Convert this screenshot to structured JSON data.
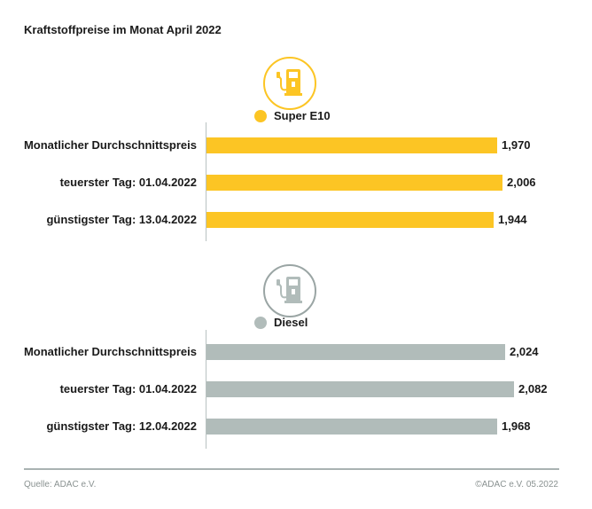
{
  "chart_data": [
    {
      "type": "bar",
      "title": "Kraftstoffpreise im Monat April 2022",
      "legend": "Super E10",
      "color": "#fcc524",
      "icon": "fuel-pump-icon",
      "categories": [
        "Monatlicher Durchschnittspreis",
        "teuerster Tag: 01.04.2022",
        "günstigster Tag: 13.04.2022"
      ],
      "values": [
        1.97,
        2.006,
        1.944
      ],
      "value_labels": [
        "1,970",
        "2,006",
        "1,944"
      ],
      "orientation": "horizontal"
    },
    {
      "type": "bar",
      "legend": "Diesel",
      "color": "#b1bcba",
      "icon": "fuel-pump-icon",
      "categories": [
        "Monatlicher Durchschnittspreis",
        "teuerster Tag: 01.04.2022",
        "günstigster Tag: 12.04.2022"
      ],
      "values": [
        2.024,
        2.082,
        1.968
      ],
      "value_labels": [
        "2,024",
        "2,082",
        "1,968"
      ],
      "orientation": "horizontal"
    }
  ],
  "footer": {
    "source": "Quelle: ADAC e.V.",
    "copyright": "©ADAC e.V. 05.2022"
  }
}
